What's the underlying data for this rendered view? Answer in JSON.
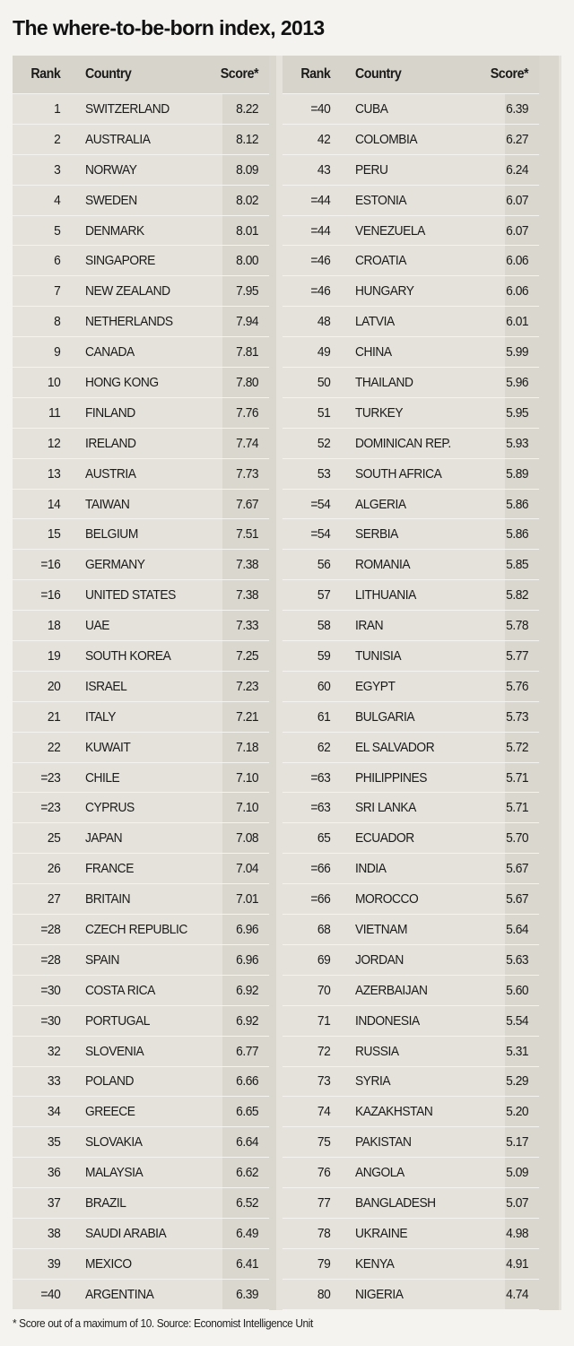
{
  "title": "The where-to-be-born index, 2013",
  "headers": {
    "rank": "Rank",
    "country": "Country",
    "score": "Score*"
  },
  "footnote": "* Score out of a maximum of 10.  Source: Economist Intelligence Unit",
  "chart_data": {
    "type": "table",
    "title": "The where-to-be-born index, 2013",
    "columns": [
      "Rank",
      "Country",
      "Score*"
    ],
    "rows": [
      [
        "1",
        "SWITZERLAND",
        "8.22"
      ],
      [
        "2",
        "AUSTRALIA",
        "8.12"
      ],
      [
        "3",
        "NORWAY",
        "8.09"
      ],
      [
        "4",
        "SWEDEN",
        "8.02"
      ],
      [
        "5",
        "DENMARK",
        "8.01"
      ],
      [
        "6",
        "SINGAPORE",
        "8.00"
      ],
      [
        "7",
        "NEW ZEALAND",
        "7.95"
      ],
      [
        "8",
        "NETHERLANDS",
        "7.94"
      ],
      [
        "9",
        "CANADA",
        "7.81"
      ],
      [
        "10",
        "HONG KONG",
        "7.80"
      ],
      [
        "11",
        "FINLAND",
        "7.76"
      ],
      [
        "12",
        "IRELAND",
        "7.74"
      ],
      [
        "13",
        "AUSTRIA",
        "7.73"
      ],
      [
        "14",
        "TAIWAN",
        "7.67"
      ],
      [
        "15",
        "BELGIUM",
        "7.51"
      ],
      [
        "=16",
        "GERMANY",
        "7.38"
      ],
      [
        "=16",
        "UNITED STATES",
        "7.38"
      ],
      [
        "18",
        "UAE",
        "7.33"
      ],
      [
        "19",
        "SOUTH KOREA",
        "7.25"
      ],
      [
        "20",
        "ISRAEL",
        "7.23"
      ],
      [
        "21",
        "ITALY",
        "7.21"
      ],
      [
        "22",
        "KUWAIT",
        "7.18"
      ],
      [
        "=23",
        "CHILE",
        "7.10"
      ],
      [
        "=23",
        "CYPRUS",
        "7.10"
      ],
      [
        "25",
        "JAPAN",
        "7.08"
      ],
      [
        "26",
        "FRANCE",
        "7.04"
      ],
      [
        "27",
        "BRITAIN",
        "7.01"
      ],
      [
        "=28",
        "CZECH REPUBLIC",
        "6.96"
      ],
      [
        "=28",
        "SPAIN",
        "6.96"
      ],
      [
        "=30",
        "COSTA RICA",
        "6.92"
      ],
      [
        "=30",
        "PORTUGAL",
        "6.92"
      ],
      [
        "32",
        "SLOVENIA",
        "6.77"
      ],
      [
        "33",
        "POLAND",
        "6.66"
      ],
      [
        "34",
        "GREECE",
        "6.65"
      ],
      [
        "35",
        "SLOVAKIA",
        "6.64"
      ],
      [
        "36",
        "MALAYSIA",
        "6.62"
      ],
      [
        "37",
        "BRAZIL",
        "6.52"
      ],
      [
        "38",
        "SAUDI ARABIA",
        "6.49"
      ],
      [
        "39",
        "MEXICO",
        "6.41"
      ],
      [
        "=40",
        "ARGENTINA",
        "6.39"
      ],
      [
        "=40",
        "CUBA",
        "6.39"
      ],
      [
        "42",
        "COLOMBIA",
        "6.27"
      ],
      [
        "43",
        "PERU",
        "6.24"
      ],
      [
        "=44",
        "ESTONIA",
        "6.07"
      ],
      [
        "=44",
        "VENEZUELA",
        "6.07"
      ],
      [
        "=46",
        "CROATIA",
        "6.06"
      ],
      [
        "=46",
        "HUNGARY",
        "6.06"
      ],
      [
        "48",
        "LATVIA",
        "6.01"
      ],
      [
        "49",
        "CHINA",
        "5.99"
      ],
      [
        "50",
        "THAILAND",
        "5.96"
      ],
      [
        "51",
        "TURKEY",
        "5.95"
      ],
      [
        "52",
        "DOMINICAN REP.",
        "5.93"
      ],
      [
        "53",
        "SOUTH AFRICA",
        "5.89"
      ],
      [
        "=54",
        "ALGERIA",
        "5.86"
      ],
      [
        "=54",
        "SERBIA",
        "5.86"
      ],
      [
        "56",
        "ROMANIA",
        "5.85"
      ],
      [
        "57",
        "LITHUANIA",
        "5.82"
      ],
      [
        "58",
        "IRAN",
        "5.78"
      ],
      [
        "59",
        "TUNISIA",
        "5.77"
      ],
      [
        "60",
        "EGYPT",
        "5.76"
      ],
      [
        "61",
        "BULGARIA",
        "5.73"
      ],
      [
        "62",
        "EL SALVADOR",
        "5.72"
      ],
      [
        "=63",
        "PHILIPPINES",
        "5.71"
      ],
      [
        "=63",
        "SRI LANKA",
        "5.71"
      ],
      [
        "65",
        "ECUADOR",
        "5.70"
      ],
      [
        "=66",
        "INDIA",
        "5.67"
      ],
      [
        "=66",
        "MOROCCO",
        "5.67"
      ],
      [
        "68",
        "VIETNAM",
        "5.64"
      ],
      [
        "69",
        "JORDAN",
        "5.63"
      ],
      [
        "70",
        "AZERBAIJAN",
        "5.60"
      ],
      [
        "71",
        "INDONESIA",
        "5.54"
      ],
      [
        "72",
        "RUSSIA",
        "5.31"
      ],
      [
        "73",
        "SYRIA",
        "5.29"
      ],
      [
        "74",
        "KAZAKHSTAN",
        "5.20"
      ],
      [
        "75",
        "PAKISTAN",
        "5.17"
      ],
      [
        "76",
        "ANGOLA",
        "5.09"
      ],
      [
        "77",
        "BANGLADESH",
        "5.07"
      ],
      [
        "78",
        "UKRAINE",
        "4.98"
      ],
      [
        "79",
        "KENYA",
        "4.91"
      ],
      [
        "80",
        "NIGERIA",
        "4.74"
      ]
    ]
  }
}
